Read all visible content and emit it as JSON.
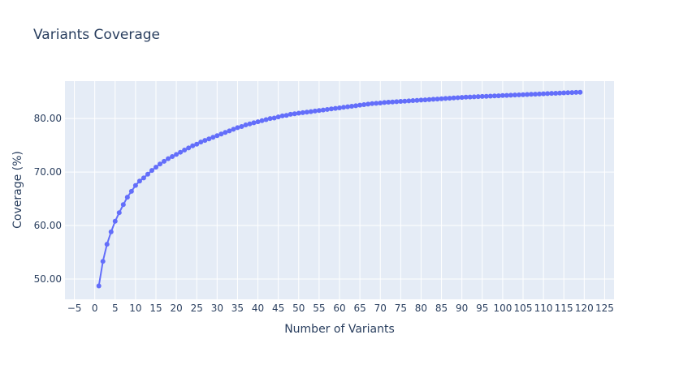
{
  "chart_data": {
    "type": "line",
    "title": "Variants Coverage",
    "xlabel": "Number of Variants",
    "ylabel": "Coverage (%)",
    "xlim": [
      -7.3,
      127.3
    ],
    "ylim": [
      46.2,
      87.0
    ],
    "x_ticks": [
      -5,
      0,
      5,
      10,
      15,
      20,
      25,
      30,
      35,
      40,
      45,
      50,
      55,
      60,
      65,
      70,
      75,
      80,
      85,
      90,
      95,
      100,
      105,
      110,
      115,
      120,
      125
    ],
    "x_tick_labels": [
      "−5",
      "0",
      "5",
      "10",
      "15",
      "20",
      "25",
      "30",
      "35",
      "40",
      "45",
      "50",
      "55",
      "60",
      "65",
      "70",
      "75",
      "80",
      "85",
      "90",
      "95",
      "100",
      "105",
      "110",
      "115",
      "120",
      "125"
    ],
    "y_ticks": [
      50,
      60,
      70,
      80
    ],
    "y_tick_labels": [
      "50.00",
      "60.00",
      "70.00",
      "80.00"
    ],
    "grid": true,
    "mode": "lines+markers",
    "colors": {
      "series": "#636efa",
      "plot_bg": "#e5ecf6",
      "grid": "#ffffff",
      "text": "#2a3f5f"
    },
    "series": [
      {
        "x": [
          1,
          2,
          3,
          4,
          5,
          6,
          7,
          8,
          9,
          10,
          11,
          12,
          13,
          14,
          15,
          16,
          17,
          18,
          19,
          20,
          21,
          22,
          23,
          24,
          25,
          26,
          27,
          28,
          29,
          30,
          31,
          32,
          33,
          34,
          35,
          36,
          37,
          38,
          39,
          40,
          41,
          42,
          43,
          44,
          45,
          46,
          47,
          48,
          49,
          50,
          51,
          52,
          53,
          54,
          55,
          56,
          57,
          58,
          59,
          60,
          61,
          62,
          63,
          64,
          65,
          66,
          67,
          68,
          69,
          70,
          71,
          72,
          73,
          74,
          75,
          76,
          77,
          78,
          79,
          80,
          81,
          82,
          83,
          84,
          85,
          86,
          87,
          88,
          89,
          90,
          91,
          92,
          93,
          94,
          95,
          96,
          97,
          98,
          99,
          100,
          101,
          102,
          103,
          104,
          105,
          106,
          107,
          108,
          109,
          110,
          111,
          112,
          113,
          114,
          115,
          116,
          117,
          118,
          119
        ],
        "y": [
          48.7,
          53.3,
          56.5,
          58.8,
          60.8,
          62.4,
          63.9,
          65.3,
          66.4,
          67.5,
          68.3,
          68.9,
          69.6,
          70.3,
          70.9,
          71.5,
          72.0,
          72.5,
          72.9,
          73.3,
          73.7,
          74.1,
          74.5,
          74.9,
          75.2,
          75.6,
          75.9,
          76.2,
          76.5,
          76.8,
          77.1,
          77.4,
          77.7,
          78.0,
          78.3,
          78.5,
          78.8,
          79.0,
          79.2,
          79.4,
          79.6,
          79.8,
          80.0,
          80.1,
          80.3,
          80.5,
          80.6,
          80.8,
          80.9,
          81.0,
          81.1,
          81.2,
          81.3,
          81.4,
          81.5,
          81.6,
          81.7,
          81.8,
          81.9,
          82.0,
          82.1,
          82.2,
          82.3,
          82.4,
          82.5,
          82.6,
          82.7,
          82.8,
          82.85,
          82.9,
          83.0,
          83.05,
          83.1,
          83.15,
          83.2,
          83.25,
          83.3,
          83.35,
          83.4,
          83.45,
          83.5,
          83.55,
          83.6,
          83.65,
          83.7,
          83.75,
          83.8,
          83.85,
          83.9,
          83.95,
          84.0,
          84.03,
          84.06,
          84.1,
          84.13,
          84.16,
          84.2,
          84.23,
          84.26,
          84.3,
          84.33,
          84.36,
          84.4,
          84.43,
          84.46,
          84.5,
          84.53,
          84.56,
          84.6,
          84.63,
          84.66,
          84.7,
          84.73,
          84.76,
          84.8,
          84.83,
          84.86,
          84.9,
          84.92
        ]
      }
    ]
  }
}
